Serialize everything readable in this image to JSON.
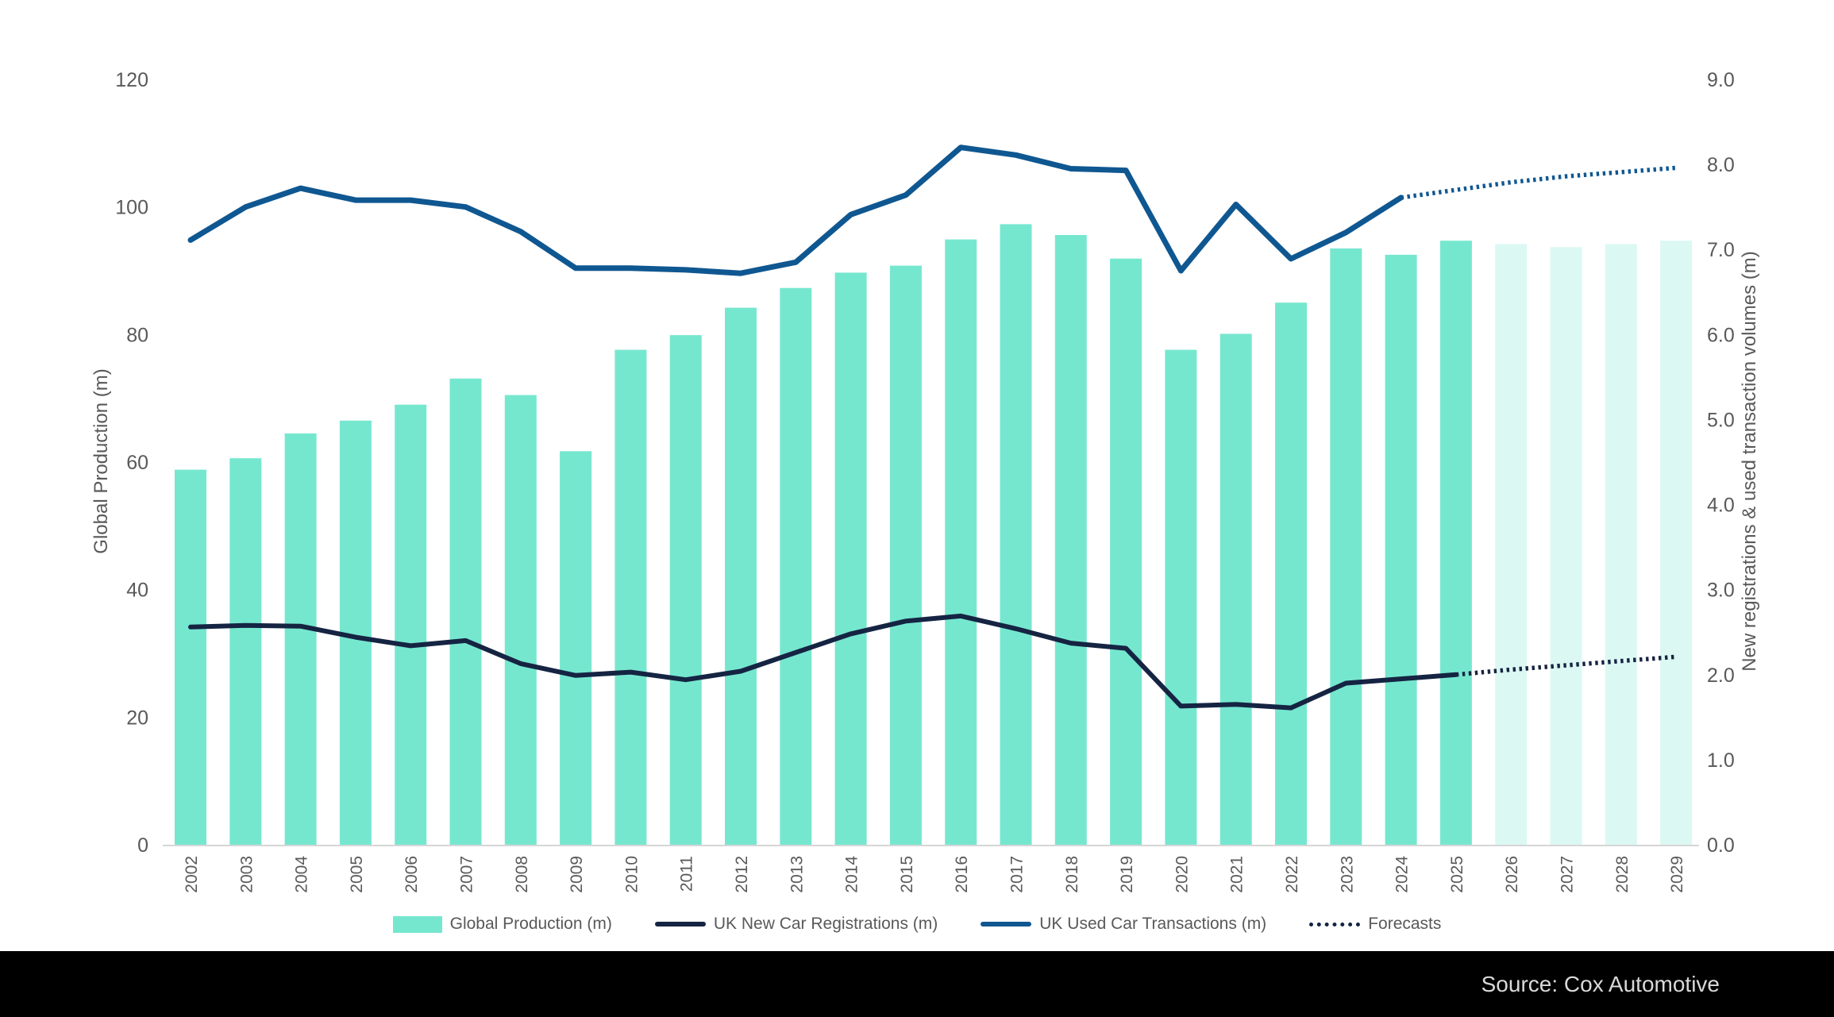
{
  "chart_data": {
    "type": "combo",
    "x": [
      2002,
      2003,
      2004,
      2005,
      2006,
      2007,
      2008,
      2009,
      2010,
      2011,
      2012,
      2013,
      2014,
      2015,
      2016,
      2017,
      2018,
      2019,
      2020,
      2021,
      2022,
      2023,
      2024,
      2025,
      2026,
      2027,
      2028,
      2029
    ],
    "left_axis": {
      "label": "Global Production (m)",
      "min": 0,
      "max": 120,
      "ticks": [
        {
          "label": "0",
          "v": 0
        },
        {
          "label": "20",
          "v": 20
        },
        {
          "label": "40",
          "v": 40
        },
        {
          "label": "60",
          "v": 60
        },
        {
          "label": "80",
          "v": 80
        },
        {
          "label": "100",
          "v": 100
        },
        {
          "label": "120",
          "v": 120
        }
      ]
    },
    "right_axis": {
      "label": "New registrations & used transaction volumes (m)",
      "min": 0,
      "max": 9,
      "ticks": [
        {
          "label": "0.0",
          "v": 0
        },
        {
          "label": "1.0",
          "v": 1
        },
        {
          "label": "2.0",
          "v": 2
        },
        {
          "label": "3.0",
          "v": 3
        },
        {
          "label": "4.0",
          "v": 4
        },
        {
          "label": "5.0",
          "v": 5
        },
        {
          "label": "6.0",
          "v": 6
        },
        {
          "label": "7.0",
          "v": 7
        },
        {
          "label": "8.0",
          "v": 8
        },
        {
          "label": "9.0",
          "v": 9
        }
      ]
    },
    "series": [
      {
        "id": "production",
        "name": "Global Production (m)",
        "type": "bar",
        "axis": "left",
        "forecast_from_index": 24,
        "values": [
          58.8,
          60.6,
          64.5,
          66.5,
          69.0,
          73.1,
          70.5,
          61.7,
          77.6,
          79.9,
          84.2,
          87.3,
          89.7,
          90.8,
          94.9,
          97.3,
          95.6,
          91.9,
          77.6,
          80.1,
          85.0,
          93.5,
          92.5,
          94.7,
          94.2,
          93.7,
          94.2,
          94.7
        ]
      },
      {
        "id": "registrations",
        "name": "UK New Car Registrations (m)",
        "type": "line",
        "axis": "right",
        "solid_until_index": 23,
        "values": [
          2.56,
          2.58,
          2.57,
          2.44,
          2.34,
          2.4,
          2.13,
          1.99,
          2.03,
          1.94,
          2.04,
          2.26,
          2.48,
          2.63,
          2.69,
          2.54,
          2.37,
          2.31,
          1.63,
          1.65,
          1.61,
          1.9,
          1.95,
          2.0,
          2.06,
          2.11,
          2.16,
          2.21
        ]
      },
      {
        "id": "used",
        "name": "UK Used Car Transactions (m)",
        "type": "line",
        "axis": "right",
        "solid_until_index": 22,
        "values": [
          7.11,
          7.5,
          7.72,
          7.58,
          7.58,
          7.5,
          7.21,
          6.78,
          6.78,
          6.76,
          6.72,
          6.85,
          7.41,
          7.64,
          8.2,
          8.11,
          7.95,
          7.93,
          6.75,
          7.53,
          6.89,
          7.2,
          7.61,
          7.7,
          7.79,
          7.86,
          7.91,
          7.96
        ]
      }
    ],
    "forecast_label": "Forecasts"
  },
  "legend": {
    "items": [
      {
        "label": "Global Production (m)"
      },
      {
        "label": "UK New Car Registrations (m)"
      },
      {
        "label": "UK Used Car Transactions (m)"
      },
      {
        "label": "Forecasts"
      }
    ]
  },
  "footer": {
    "source_label": "Source: Cox Automotive"
  },
  "colors": {
    "bar": "#76E7CF",
    "bar_forecast": "#DCF8F3",
    "registrations_line": "#152442",
    "used_line": "#0F5791",
    "text_gray": "#595959",
    "axis_line": "#D6D6D6",
    "footer_bg": "#000000",
    "source_text": "#D9D9D9"
  }
}
